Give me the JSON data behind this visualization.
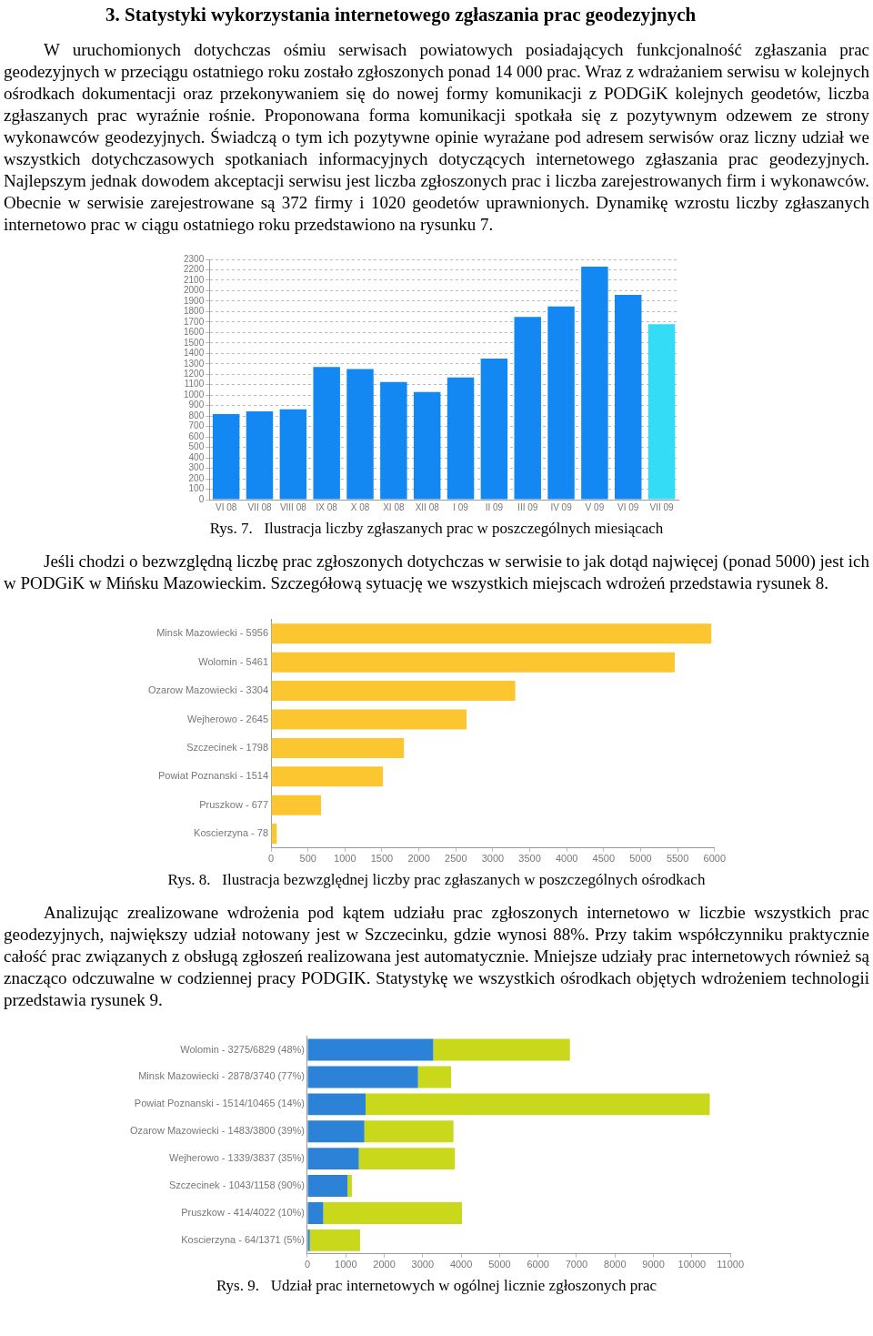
{
  "chart_data": [
    {
      "type": "bar",
      "title": "3.  Statystyki wykorzystania internetowego zgłaszania prac geodezyjnych",
      "subtitle": "W uruchomionych dotychczas ośmiu serwisach powiatowych posiadających funkcjonalność zgłaszania prac geodezyjnych w przeciągu ostatniego roku zostało zgłoszonych ponad 14 000 prac. Wraz z wdrażaniem serwisu w kolejnych ośrodkach dokumentacji oraz przekonywaniem się do nowej formy komunikacji z PODGiK kolejnych geodetów, liczba zgłaszanych prac wyraźnie rośnie. Proponowana forma komunikacji spotkała się z pozytywnym odzewem ze strony wykonawców geodezyjnych. Świadczą o tym ich pozytywne opinie wyrażane pod adresem serwisów oraz liczny udział we wszystkich dotychczasowych spotkaniach informacyjnych dotyczących internetowego zgłaszania prac geodezyjnych. Najlepszym jednak dowodem akceptacji serwisu jest liczba zgłoszonych prac i liczba zarejestrowanych firm i wykonawców. Obecnie w serwisie zarejestrowane są 372 firmy i 1020 geodetów uprawnionych. Dynamikę wzrostu liczby zgłaszanych internetowo prac w ciągu ostatniego roku przedstawiono na rysunku 7.",
      "annotations": [
        "Rys. 7.   Ilustracja liczby zgłaszanych prac w poszczególnych miesiącach"
      ],
      "categories": [
        "VI 08",
        "VII 08",
        "VIII 08",
        "IX 08",
        "X 08",
        "XI 08",
        "XII 08",
        "I 09",
        "II 09",
        "III 09",
        "IV 09",
        "V 09",
        "VI 09",
        "VII 09"
      ],
      "values": [
        820,
        845,
        865,
        1270,
        1250,
        1125,
        1030,
        1170,
        1350,
        1750,
        1850,
        2230,
        1960,
        1680
      ],
      "colors": [
        "#1388f2",
        "#1388f2",
        "#1388f2",
        "#1388f2",
        "#1388f2",
        "#1388f2",
        "#1388f2",
        "#1388f2",
        "#1388f2",
        "#1388f2",
        "#1388f2",
        "#1388f2",
        "#1388f2",
        "#35dcf6"
      ],
      "ylim": [
        0,
        2300
      ],
      "yticks": [
        0,
        100,
        200,
        300,
        400,
        500,
        600,
        700,
        800,
        900,
        1000,
        1100,
        1200,
        1300,
        1400,
        1500,
        1600,
        1700,
        1800,
        1900,
        2000,
        2100,
        2200,
        2300
      ],
      "grid": "y"
    },
    {
      "type": "bar",
      "orientation": "horizontal",
      "subtitle": "Jeśli chodzi o bezwzględną liczbę prac zgłoszonych dotychczas w serwisie to jak dotąd najwięcej (ponad 5000) jest ich w PODGiK w Mińsku Mazowieckim. Szczegółową sytuację we wszystkich miejscach wdrożeń przedstawia rysunek 8.",
      "annotations": [
        "Rys. 8.   Ilustracja bezwzględnej liczby prac zgłaszanych w poszczególnych ośrodkach"
      ],
      "categories": [
        "Minsk Mazowiecki - 5956",
        "Wolomin - 5461",
        "Ozarow Mazowiecki - 3304",
        "Wejherowo - 2645",
        "Szczecinek - 1798",
        "Powiat Poznanski - 1514",
        "Pruszkow - 677",
        "Koscierzyna - 78"
      ],
      "values": [
        5956,
        5461,
        3304,
        2645,
        1798,
        1514,
        677,
        78
      ],
      "color": "#fbc630",
      "xlim": [
        0,
        6000
      ],
      "xticks": [
        0,
        500,
        1000,
        1500,
        2000,
        2500,
        3000,
        3500,
        4000,
        4500,
        5000,
        5500,
        6000
      ]
    },
    {
      "type": "bar",
      "orientation": "horizontal",
      "stacked": true,
      "subtitle": "Analizując zrealizowane wdrożenia pod kątem udziału prac zgłoszonych internetowo w liczbie wszystkich prac geodezyjnych, największy udział notowany jest w Szczecinku, gdzie wynosi 88%. Przy takim współczynniku praktycznie całość prac związanych z obsługą zgłoszeń realizowana jest automatycznie. Mniejsze udziały prac internetowych również są znacząco odczuwalne w codziennej pracy PODGIK. Statystykę we wszystkich ośrodkach objętych wdrożeniem technologii przedstawia rysunek 9.",
      "annotations": [
        "Rys. 9.   Udział prac internetowych w ogólnej licznie zgłoszonych prac"
      ],
      "categories": [
        "Wolomin - 3275/6829 (48%)",
        "Minsk Mazowiecki - 2878/3740 (77%)",
        "Powiat Poznanski - 1514/10465 (14%)",
        "Ozarow Mazowiecki - 1483/3800 (39%)",
        "Wejherowo - 1339/3837 (35%)",
        "Szczecinek - 1043/1158 (90%)",
        "Pruszkow - 414/4022 (10%)",
        "Koscierzyna - 64/1371 (5%)"
      ],
      "series": [
        {
          "color": "#2b82d6",
          "values": [
            3275,
            2878,
            1514,
            1483,
            1339,
            1043,
            414,
            64
          ]
        },
        {
          "color": "#c9d81a",
          "values": [
            3554,
            862,
            8951,
            2317,
            2498,
            115,
            3608,
            1307
          ]
        }
      ],
      "xlim": [
        0,
        11000
      ],
      "xticks": [
        0,
        1000,
        2000,
        3000,
        4000,
        5000,
        6000,
        7000,
        8000,
        9000,
        10000,
        11000
      ]
    }
  ]
}
